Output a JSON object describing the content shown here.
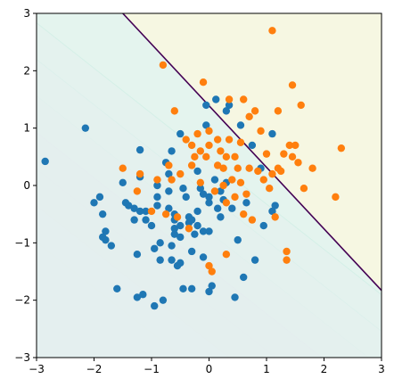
{
  "chart_data": {
    "type": "scatter",
    "title": "",
    "xlabel": "",
    "ylabel": "",
    "xlim": [
      -3,
      3
    ],
    "ylim": [
      -3,
      3
    ],
    "grid": false,
    "legend": "none",
    "x_ticks": [
      "−3",
      "−2",
      "−1",
      "0",
      "1",
      "2",
      "3"
    ],
    "y_ticks": [
      "−3",
      "−2",
      "−1",
      "0",
      "1",
      "2",
      "3"
    ],
    "x_tick_values": [
      -3,
      -2,
      -1,
      0,
      1,
      2,
      3
    ],
    "y_tick_values": [
      -3,
      -2,
      -1,
      0,
      1,
      2,
      3
    ],
    "background": {
      "type": "decision_function_contours",
      "direction": [
        0.62,
        0.785
      ],
      "offset": 0.865,
      "levels": [
        -4,
        -3.5,
        -3,
        -2.5,
        -2,
        -1.5,
        -1,
        -0.5,
        0
      ],
      "low_color": "#e6dff0",
      "mid_color": "#e4f4ee",
      "high_color": "#f6f7e2",
      "low_line_color": "#d8cbe6",
      "high_line_color": "#cfeee4"
    },
    "decision_boundary": {
      "points": [
        [
          -1.5,
          3
        ],
        [
          3,
          -1.83
        ]
      ],
      "color": "#440154"
    },
    "series": [
      {
        "color": "#1f77b4",
        "points": [
          [
            -2.85,
            0.42
          ],
          [
            -2.15,
            1.0
          ],
          [
            -2.0,
            -0.3
          ],
          [
            -1.9,
            -0.2
          ],
          [
            -1.85,
            -0.5
          ],
          [
            -1.85,
            -0.9
          ],
          [
            -1.8,
            -0.95
          ],
          [
            -1.8,
            -0.8
          ],
          [
            -1.7,
            -1.05
          ],
          [
            -1.6,
            -1.8
          ],
          [
            -1.5,
            0.05
          ],
          [
            -1.45,
            -0.3
          ],
          [
            -1.4,
            -0.35
          ],
          [
            -1.3,
            -0.4
          ],
          [
            -1.3,
            -0.6
          ],
          [
            -1.25,
            -1.2
          ],
          [
            -1.25,
            -1.95
          ],
          [
            -1.2,
            0.62
          ],
          [
            -1.2,
            0.15
          ],
          [
            -1.2,
            -0.45
          ],
          [
            -1.15,
            -1.9
          ],
          [
            -1.1,
            -0.6
          ],
          [
            -1.1,
            -0.45
          ],
          [
            -1.0,
            -0.7
          ],
          [
            -0.95,
            -1.1
          ],
          [
            -0.95,
            -2.1
          ],
          [
            -0.9,
            -0.35
          ],
          [
            -0.9,
            -0.2
          ],
          [
            -0.9,
            0.0
          ],
          [
            -0.85,
            -1.3
          ],
          [
            -0.85,
            -1.0
          ],
          [
            -0.8,
            -2.0
          ],
          [
            -0.75,
            0.4
          ],
          [
            -0.7,
            -0.1
          ],
          [
            -0.7,
            0.2
          ],
          [
            -0.7,
            -0.4
          ],
          [
            -0.65,
            0.6
          ],
          [
            -0.65,
            -1.3
          ],
          [
            -0.65,
            -1.05
          ],
          [
            -0.6,
            -0.5
          ],
          [
            -0.6,
            -0.6
          ],
          [
            -0.6,
            -0.75
          ],
          [
            -0.6,
            -0.85
          ],
          [
            -0.55,
            -1.4
          ],
          [
            -0.5,
            -1.35
          ],
          [
            -0.5,
            -0.9
          ],
          [
            -0.5,
            -0.7
          ],
          [
            -0.5,
            0.9
          ],
          [
            -0.45,
            -0.05
          ],
          [
            -0.45,
            -1.8
          ],
          [
            -0.4,
            -0.2
          ],
          [
            -0.35,
            -0.55
          ],
          [
            -0.35,
            -0.65
          ],
          [
            -0.3,
            -0.6
          ],
          [
            -0.3,
            -1.15
          ],
          [
            -0.3,
            -1.8
          ],
          [
            -0.25,
            -0.85
          ],
          [
            -0.2,
            -0.7
          ],
          [
            -0.2,
            -0.45
          ],
          [
            -0.2,
            0.25
          ],
          [
            -0.15,
            -0.05
          ],
          [
            -0.1,
            -0.8
          ],
          [
            -0.1,
            -1.25
          ],
          [
            -0.1,
            -0.15
          ],
          [
            -0.05,
            1.05
          ],
          [
            -0.05,
            1.4
          ],
          [
            0.0,
            -0.3
          ],
          [
            0.0,
            -0.2
          ],
          [
            0.0,
            -0.8
          ],
          [
            0.0,
            -1.85
          ],
          [
            0.05,
            -1.75
          ],
          [
            0.1,
            0.1
          ],
          [
            0.12,
            1.5
          ],
          [
            0.15,
            -0.4
          ],
          [
            0.2,
            -0.1
          ],
          [
            0.2,
            -0.55
          ],
          [
            0.25,
            -0.25
          ],
          [
            0.3,
            0.05
          ],
          [
            0.35,
            1.4
          ],
          [
            0.4,
            -0.4
          ],
          [
            0.45,
            -1.95
          ],
          [
            0.5,
            -0.95
          ],
          [
            0.55,
            1.05
          ],
          [
            0.6,
            -1.6
          ],
          [
            0.65,
            -0.3
          ],
          [
            0.75,
            0.7
          ],
          [
            0.8,
            -1.3
          ],
          [
            0.9,
            0.3
          ],
          [
            0.95,
            -0.7
          ],
          [
            1.1,
            0.9
          ],
          [
            1.1,
            -0.45
          ],
          [
            1.15,
            -0.35
          ],
          [
            0.3,
            1.3
          ]
        ]
      },
      {
        "color": "#ff7f0e",
        "points": [
          [
            -1.5,
            0.3
          ],
          [
            -1.25,
            -0.1
          ],
          [
            -1.2,
            0.2
          ],
          [
            -1.0,
            -0.45
          ],
          [
            -0.9,
            0.1
          ],
          [
            -0.8,
            2.1
          ],
          [
            -0.75,
            -0.5
          ],
          [
            -0.7,
            0.35
          ],
          [
            -0.65,
            0.1
          ],
          [
            -0.6,
            1.3
          ],
          [
            -0.55,
            -0.55
          ],
          [
            -0.5,
            0.2
          ],
          [
            -0.4,
            0.8
          ],
          [
            -0.35,
            -0.75
          ],
          [
            -0.3,
            0.7
          ],
          [
            -0.3,
            0.35
          ],
          [
            -0.25,
            0.5
          ],
          [
            -0.2,
            0.9
          ],
          [
            -0.15,
            0.6
          ],
          [
            -0.15,
            0.05
          ],
          [
            -0.1,
            1.8
          ],
          [
            -0.05,
            0.5
          ],
          [
            0.0,
            0.95
          ],
          [
            0.0,
            0.7
          ],
          [
            0.0,
            -1.4
          ],
          [
            0.05,
            -1.5
          ],
          [
            0.1,
            -0.1
          ],
          [
            0.15,
            0.8
          ],
          [
            0.2,
            0.6
          ],
          [
            0.25,
            0.3
          ],
          [
            0.3,
            0.5
          ],
          [
            0.3,
            -0.3
          ],
          [
            0.3,
            -1.2
          ],
          [
            0.35,
            1.5
          ],
          [
            0.35,
            0.8
          ],
          [
            0.4,
            0.1
          ],
          [
            0.45,
            0.5
          ],
          [
            0.45,
            -0.2
          ],
          [
            0.5,
            0.3
          ],
          [
            0.55,
            0.75
          ],
          [
            0.55,
            0.05
          ],
          [
            0.6,
            1.5
          ],
          [
            0.6,
            -0.5
          ],
          [
            0.65,
            -0.15
          ],
          [
            0.7,
            1.2
          ],
          [
            0.7,
            0.3
          ],
          [
            0.75,
            -0.6
          ],
          [
            0.8,
            1.3
          ],
          [
            0.85,
            0.25
          ],
          [
            0.9,
            0.95
          ],
          [
            0.95,
            0.1
          ],
          [
            1.0,
            0.55
          ],
          [
            1.05,
            -0.05
          ],
          [
            1.1,
            2.7
          ],
          [
            1.1,
            0.2
          ],
          [
            1.15,
            -0.55
          ],
          [
            1.2,
            1.3
          ],
          [
            1.2,
            0.3
          ],
          [
            1.25,
            0.25
          ],
          [
            1.3,
            0.55
          ],
          [
            1.35,
            -1.15
          ],
          [
            1.35,
            -1.3
          ],
          [
            1.4,
            0.7
          ],
          [
            1.45,
            1.75
          ],
          [
            1.45,
            0.5
          ],
          [
            1.5,
            0.7
          ],
          [
            1.55,
            0.4
          ],
          [
            1.6,
            1.4
          ],
          [
            1.65,
            -0.05
          ],
          [
            1.8,
            0.3
          ],
          [
            2.2,
            -0.2
          ],
          [
            2.3,
            0.65
          ],
          [
            0.25,
            0.0
          ],
          [
            0.15,
            0.35
          ]
        ]
      }
    ]
  }
}
